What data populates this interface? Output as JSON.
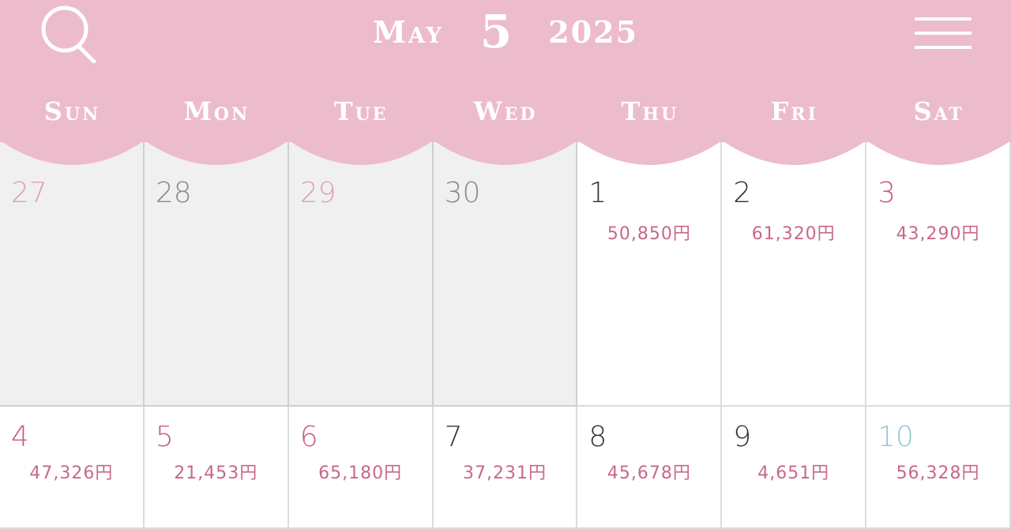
{
  "header": {
    "month": "May",
    "day": "5",
    "year": "2025",
    "search_icon": "search-icon",
    "menu_icon": "hamburger-menu-icon"
  },
  "weekdays": [
    "Sun",
    "Mon",
    "Tue",
    "Wed",
    "Thu",
    "Fri",
    "Sat"
  ],
  "colors": {
    "header": "#ecbccc",
    "amount": "#c8688a",
    "holiday": "#c85a80",
    "saturday_blue": "#90c8d0",
    "weekday": "#333333",
    "prev_gray": "#8a8a8a",
    "prev_pink": "#e0a0b8",
    "prev_bg": "#f0f0f0"
  },
  "weeks": [
    [
      {
        "day": "27",
        "amount": "",
        "prev": true,
        "color": "#e0a0b8"
      },
      {
        "day": "28",
        "amount": "",
        "prev": true,
        "color": "#8a8a8a"
      },
      {
        "day": "29",
        "amount": "",
        "prev": true,
        "color": "#e0a0b8"
      },
      {
        "day": "30",
        "amount": "",
        "prev": true,
        "color": "#8a8a8a"
      },
      {
        "day": "1",
        "amount": "50,850円",
        "color": "#333333"
      },
      {
        "day": "2",
        "amount": "61,320円",
        "color": "#333333"
      },
      {
        "day": "3",
        "amount": "43,290円",
        "color": "#c85a80"
      }
    ],
    [
      {
        "day": "4",
        "amount": "47,326円",
        "color": "#c85a80"
      },
      {
        "day": "5",
        "amount": "21,453円",
        "color": "#c85a80"
      },
      {
        "day": "6",
        "amount": "65,180円",
        "color": "#c85a80"
      },
      {
        "day": "7",
        "amount": "37,231円",
        "color": "#333333"
      },
      {
        "day": "8",
        "amount": "45,678円",
        "color": "#333333"
      },
      {
        "day": "9",
        "amount": "4,651円",
        "color": "#333333"
      },
      {
        "day": "10",
        "amount": "56,328円",
        "color": "#90c8d0"
      }
    ]
  ]
}
